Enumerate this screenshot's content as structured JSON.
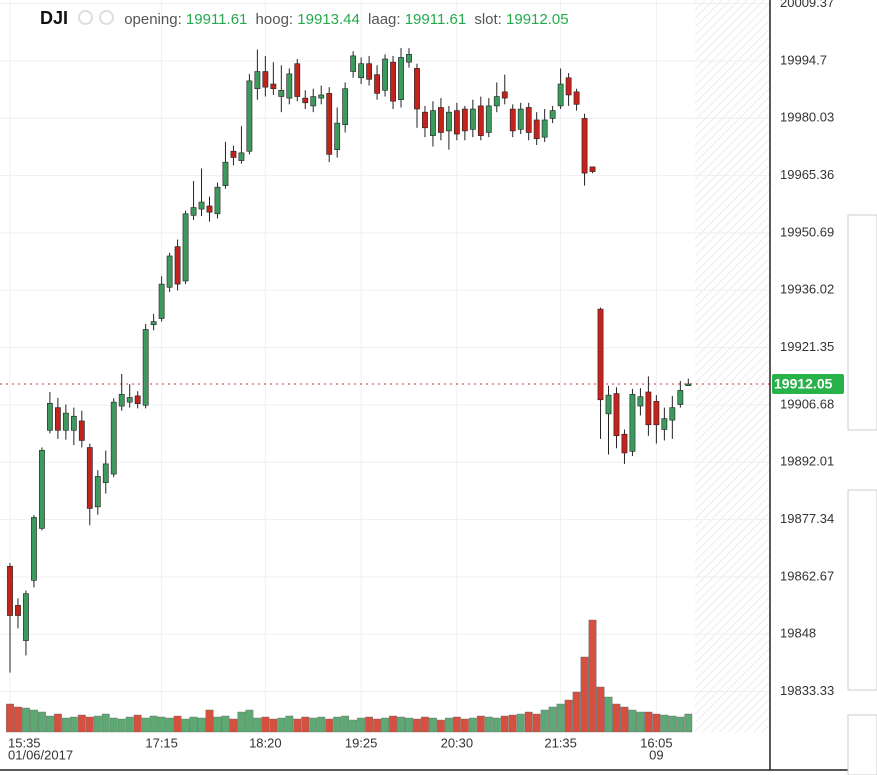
{
  "chart_data": {
    "type": "candlestick",
    "title": "DJI",
    "info": [
      {
        "label": "opening:",
        "value": 19911.61
      },
      {
        "label": "hoog:",
        "value": 19913.44
      },
      {
        "label": "laag:",
        "value": 19911.61
      },
      {
        "label": "slot:",
        "value": 19912.05
      }
    ],
    "categories": [
      "15:35",
      null,
      null,
      null,
      null,
      null,
      null,
      null,
      null,
      null,
      null,
      null,
      null,
      null,
      null,
      null,
      null,
      null,
      null,
      "17:15",
      null,
      null,
      null,
      null,
      null,
      null,
      null,
      null,
      null,
      null,
      null,
      null,
      "18:20",
      null,
      null,
      null,
      null,
      null,
      null,
      null,
      null,
      null,
      null,
      null,
      "19:25",
      null,
      null,
      null,
      null,
      null,
      null,
      null,
      null,
      null,
      null,
      null,
      "20:30",
      null,
      null,
      null,
      null,
      null,
      null,
      null,
      null,
      null,
      null,
      null,
      null,
      "21:35",
      null,
      null,
      null,
      null,
      null,
      null,
      null,
      null,
      null,
      null,
      null,
      "16:05",
      null,
      null,
      null,
      null
    ],
    "sublabels": [
      "01/06/2017",
      null,
      null,
      null,
      null,
      null,
      null,
      null,
      null,
      null,
      null,
      null,
      null,
      null,
      null,
      null,
      null,
      null,
      null,
      null,
      null,
      null,
      null,
      null,
      null,
      null,
      null,
      null,
      null,
      null,
      null,
      null,
      null,
      null,
      null,
      null,
      null,
      null,
      null,
      null,
      null,
      null,
      null,
      null,
      null,
      null,
      null,
      null,
      null,
      null,
      null,
      null,
      null,
      null,
      null,
      null,
      null,
      null,
      null,
      null,
      null,
      null,
      null,
      null,
      null,
      null,
      null,
      null,
      null,
      null,
      null,
      null,
      null,
      null,
      null,
      null,
      null,
      null,
      null,
      null,
      null,
      "09",
      null,
      null,
      null,
      null
    ],
    "open": [
      19865.4,
      19855.4,
      19846.4,
      19861.8,
      19875.1,
      19900.2,
      19906.0,
      19900.2,
      19900.2,
      19902.6,
      19895.8,
      19880.6,
      19886.8,
      19889.0,
      19906.4,
      19907.4,
      19909.0,
      19906.6,
      19927.2,
      19928.8,
      19936.8,
      19947.2,
      19938.4,
      19955.2,
      19956.8,
      19957.6,
      19955.6,
      19962.8,
      19971.6,
      19969.2,
      19971.6,
      19987.6,
      19992.0,
      19988.8,
      19985.6,
      19985.2,
      19994.0,
      19985.2,
      19983.2,
      19985.2,
      19986.4,
      19972.0,
      19978.4,
      19992.0,
      19990.4,
      19994.0,
      19991.2,
      19987.2,
      19994.4,
      19984.8,
      19994.4,
      19992.8,
      19981.6,
      19975.6,
      19982.8,
      19976.8,
      19982.0,
      19982.4,
      19977.2,
      19983.2,
      19976.4,
      19983.2,
      19986.8,
      19982.4,
      19977.2,
      19982.8,
      19979.6,
      19975.2,
      19980.0,
      19983.2,
      19990.4,
      19986.8,
      19980.0,
      19967.6,
      19931.2,
      19904.4,
      19909.6,
      19899.2,
      19894.8,
      19906.4,
      19910.0,
      19907.6,
      19900.4,
      19902.8,
      19906.8,
      19911.61
    ],
    "high": [
      19866.2,
      19857.2,
      19859.2,
      19878.5,
      19895.8,
      19910.0,
      19908.5,
      19906.8,
      19906.0,
      19905.2,
      19896.8,
      19890.0,
      19895.0,
      19908.4,
      19914.6,
      19912.0,
      19910.2,
      19927.4,
      19930.0,
      19939.6,
      19945.6,
      19949.0,
      19956.4,
      19964.0,
      19967.2,
      19960.0,
      19963.6,
      19974.0,
      19973.0,
      19978.0,
      19991.4,
      19997.6,
      19996.0,
      19994.4,
      19993.6,
      19992.8,
      19995.2,
      19987.2,
      19987.6,
      19988.4,
      19988.0,
      19982.8,
      19989.2,
      19997.2,
      19995.6,
      19996.0,
      19993.6,
      19996.4,
      19996.0,
      19998.0,
      19998.0,
      19994.0,
      19983.2,
      19984.4,
      19985.2,
      19983.2,
      19984.0,
      19983.2,
      19984.8,
      19985.6,
      19985.2,
      19989.2,
      19991.2,
      19983.6,
      19984.0,
      19984.0,
      19981.6,
      19982.4,
      19983.2,
      19992.8,
      19991.6,
      19987.6,
      19981.2,
      19967.6,
      19931.6,
      19911.6,
      19911.2,
      19900.4,
      19910.8,
      19911.0,
      19914.0,
      19909.2,
      19906.0,
      19909.0,
      19912.8,
      19913.44
    ],
    "low": [
      19838.2,
      19849.5,
      19842.6,
      19860.0,
      19874.6,
      19899.4,
      19898.0,
      19897.8,
      19896.4,
      19895.8,
      19875.9,
      19878.6,
      19884.0,
      19888.2,
      19905.2,
      19906.0,
      19905.8,
      19905.8,
      19925.8,
      19928.0,
      19935.6,
      19936.0,
      19937.6,
      19954.0,
      19955.0,
      19953.6,
      19954.4,
      19962.0,
      19968.0,
      19968.4,
      19970.8,
      19984.8,
      19985.6,
      19986.0,
      19981.6,
      19983.6,
      19984.4,
      19982.4,
      19981.6,
      19983.6,
      19968.8,
      19970.0,
      19976.4,
      19990.4,
      19988.8,
      19988.4,
      19984.8,
      19985.6,
      19982.4,
      19982.8,
      19993.0,
      19977.6,
      19975.2,
      19972.8,
      19974.4,
      19972.0,
      19974.4,
      19974.4,
      19975.2,
      19974.4,
      19975.2,
      19981.6,
      19983.6,
      19975.2,
      19976.0,
      19974.4,
      19973.2,
      19974.0,
      19978.8,
      19982.4,
      19983.2,
      19982.0,
      19962.8,
      19966.0,
      19898.0,
      19894.0,
      19895.6,
      19891.6,
      19893.6,
      19904.0,
      19898.8,
      19896.8,
      19897.6,
      19898.0,
      19906.0,
      19911.61
    ],
    "close": [
      19852.8,
      19852.8,
      19858.4,
      19877.9,
      19895.1,
      19907.1,
      19900.2,
      19904.6,
      19903.8,
      19897.6,
      19880.2,
      19888.4,
      19891.6,
      19907.4,
      19909.4,
      19908.6,
      19907.0,
      19926.0,
      19928.0,
      19937.6,
      19944.8,
      19937.6,
      19955.6,
      19957.2,
      19958.6,
      19956.0,
      19962.4,
      19968.8,
      19970.0,
      19971.2,
      19989.6,
      19992.0,
      19988.0,
      19987.6,
      19987.2,
      19991.4,
      19985.6,
      19984.0,
      19985.6,
      19986.0,
      19970.8,
      19978.8,
      19987.6,
      19996.0,
      19994.0,
      19990.0,
      19986.4,
      19995.2,
      19984.4,
      19995.6,
      19996.4,
      19982.4,
      19977.6,
      19982.0,
      19976.4,
      19981.6,
      19976.0,
      19976.8,
      19982.4,
      19975.6,
      19983.2,
      19985.6,
      19985.2,
      19976.8,
      19982.4,
      19976.4,
      19974.8,
      19979.6,
      19982.0,
      19988.8,
      19986.0,
      19983.6,
      19966.0,
      19966.4,
      19908.0,
      19909.2,
      19898.8,
      19894.4,
      19909.4,
      19908.8,
      19901.6,
      19901.6,
      19903.2,
      19906.0,
      19910.4,
      19912.05
    ],
    "volume": [
      28,
      25,
      24,
      22,
      20,
      16,
      18,
      14,
      15,
      17,
      15,
      16,
      18,
      14,
      13,
      15,
      17,
      14,
      16,
      15,
      14,
      16,
      13,
      15,
      14,
      22,
      15,
      16,
      13,
      20,
      22,
      14,
      15,
      13,
      14,
      16,
      13,
      15,
      14,
      15,
      13,
      15,
      16,
      12,
      14,
      15,
      13,
      14,
      16,
      15,
      14,
      13,
      15,
      14,
      12,
      14,
      15,
      13,
      14,
      16,
      15,
      14,
      16,
      17,
      18,
      20,
      18,
      22,
      25,
      28,
      32,
      40,
      75,
      112,
      45,
      35,
      28,
      25,
      22,
      20,
      20,
      18,
      17,
      16,
      15,
      18
    ],
    "vlim": [
      0,
      120
    ],
    "up_color": "#3b9a5c",
    "down_color": "#c3231d",
    "volume_up_color": "#5ea874",
    "volume_down_color": "#d5503f",
    "last_price": 19912.05,
    "last_price_color": "#e0736b",
    "ylim": [
      19823,
      20010.3
    ],
    "yticks": [
      20009.37,
      19994.7,
      19980.03,
      19965.36,
      19950.69,
      19936.02,
      19921.35,
      19906.68,
      19892.01,
      19877.34,
      19862.67,
      19848,
      19833.33
    ],
    "grid": true
  }
}
